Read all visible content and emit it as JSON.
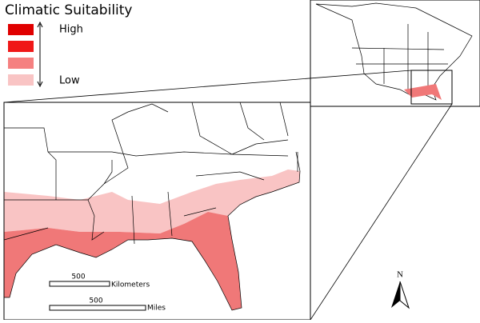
{
  "legend": {
    "title": "Climatic Suitability",
    "high_label": "High",
    "low_label": "Low",
    "colors": [
      "#e00000",
      "#f01818",
      "#f58080",
      "#f9c4c4"
    ]
  },
  "scale_bars": [
    {
      "value": "500",
      "unit": "Kilometers"
    },
    {
      "value": "500",
      "unit": "Miles"
    }
  ],
  "north_arrow": "N"
}
